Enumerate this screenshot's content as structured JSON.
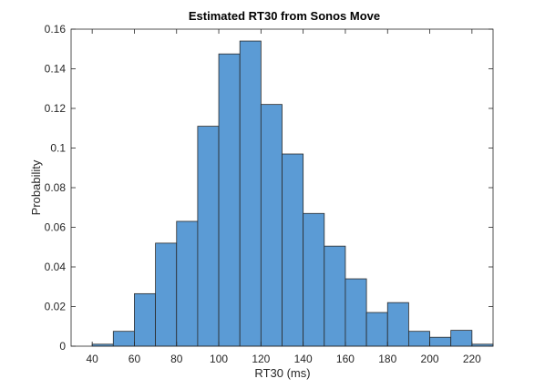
{
  "chart_data": {
    "type": "bar",
    "title": "Estimated RT30 from Sonos Move",
    "xlabel": "RT30 (ms)",
    "ylabel": "Probability",
    "xlim": [
      30,
      230
    ],
    "ylim": [
      0,
      0.16
    ],
    "grid": false,
    "bin_width": 10,
    "bin_starts": [
      40,
      50,
      60,
      70,
      80,
      90,
      100,
      110,
      120,
      130,
      140,
      150,
      160,
      170,
      180,
      190,
      200,
      210,
      220
    ],
    "values": [
      0.001,
      0.0075,
      0.0265,
      0.052,
      0.063,
      0.111,
      0.1475,
      0.154,
      0.122,
      0.097,
      0.067,
      0.0505,
      0.034,
      0.017,
      0.022,
      0.0075,
      0.0045,
      0.008,
      0.001
    ],
    "xticks": [
      "40",
      "60",
      "80",
      "100",
      "120",
      "140",
      "160",
      "180",
      "200",
      "220"
    ],
    "yticks": [
      "0",
      "0.02",
      "0.04",
      "0.06",
      "0.08",
      "0.1",
      "0.12",
      "0.14",
      "0.16"
    ],
    "colors": {
      "bar_fill": "#5b9bd5",
      "bar_edge": "#2a2a2a",
      "axis": "#262626"
    }
  }
}
